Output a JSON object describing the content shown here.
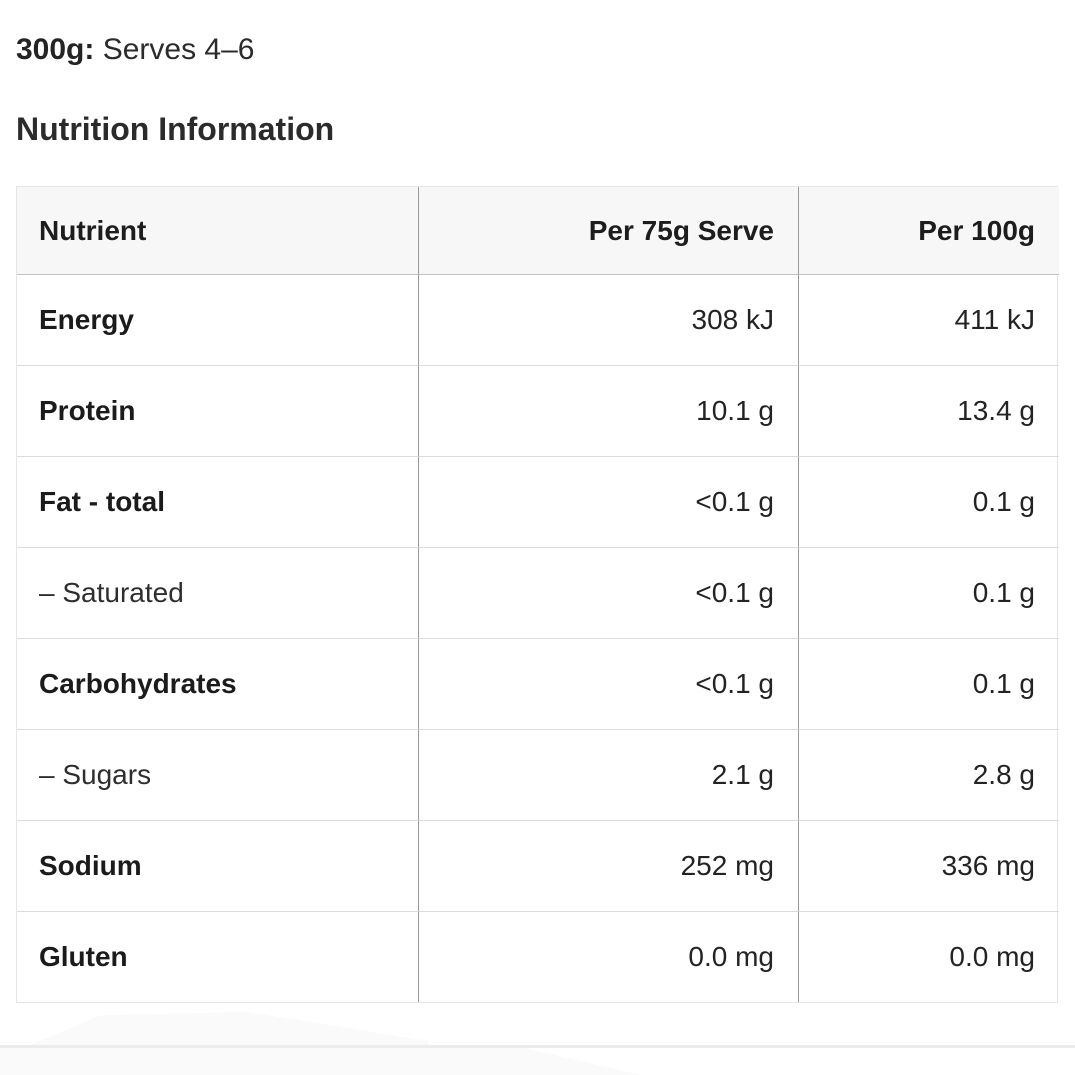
{
  "header": {
    "serving_weight": "300g:",
    "serving_detail": " Serves 4–6",
    "section_title": "Nutrition Information"
  },
  "table": {
    "columns": {
      "nutrient": "Nutrient",
      "per_serve": "Per 75g Serve",
      "per_100g": "Per 100g"
    },
    "rows": [
      {
        "nutrient": "Energy",
        "per_serve": "308 kJ",
        "per_100g": "411 kJ",
        "emphasis": "bold"
      },
      {
        "nutrient": "Protein",
        "per_serve": "10.1 g",
        "per_100g": "13.4 g",
        "emphasis": "bold"
      },
      {
        "nutrient": "Fat - total",
        "per_serve": "<0.1 g",
        "per_100g": "0.1 g",
        "emphasis": "bold"
      },
      {
        "nutrient": "– Saturated",
        "per_serve": "<0.1 g",
        "per_100g": "0.1 g",
        "emphasis": "sub"
      },
      {
        "nutrient": "Carbohydrates",
        "per_serve": "<0.1 g",
        "per_100g": "0.1 g",
        "emphasis": "bold"
      },
      {
        "nutrient": "– Sugars",
        "per_serve": "2.1 g",
        "per_100g": "2.8 g",
        "emphasis": "sub"
      },
      {
        "nutrient": "Sodium",
        "per_serve": "252 mg",
        "per_100g": "336 mg",
        "emphasis": "bold"
      },
      {
        "nutrient": "Gluten",
        "per_serve": "0.0 mg",
        "per_100g": "0.0 mg",
        "emphasis": "bold"
      }
    ]
  },
  "colors": {
    "text": "#232323",
    "header_background": "#f7f7f7",
    "column_separator": "#9a9a9a",
    "row_separator": "#dcdcdc",
    "header_separator": "#c2c2c2",
    "outer_border": "#e5e5e5",
    "bottom_divider": "#ececec"
  }
}
